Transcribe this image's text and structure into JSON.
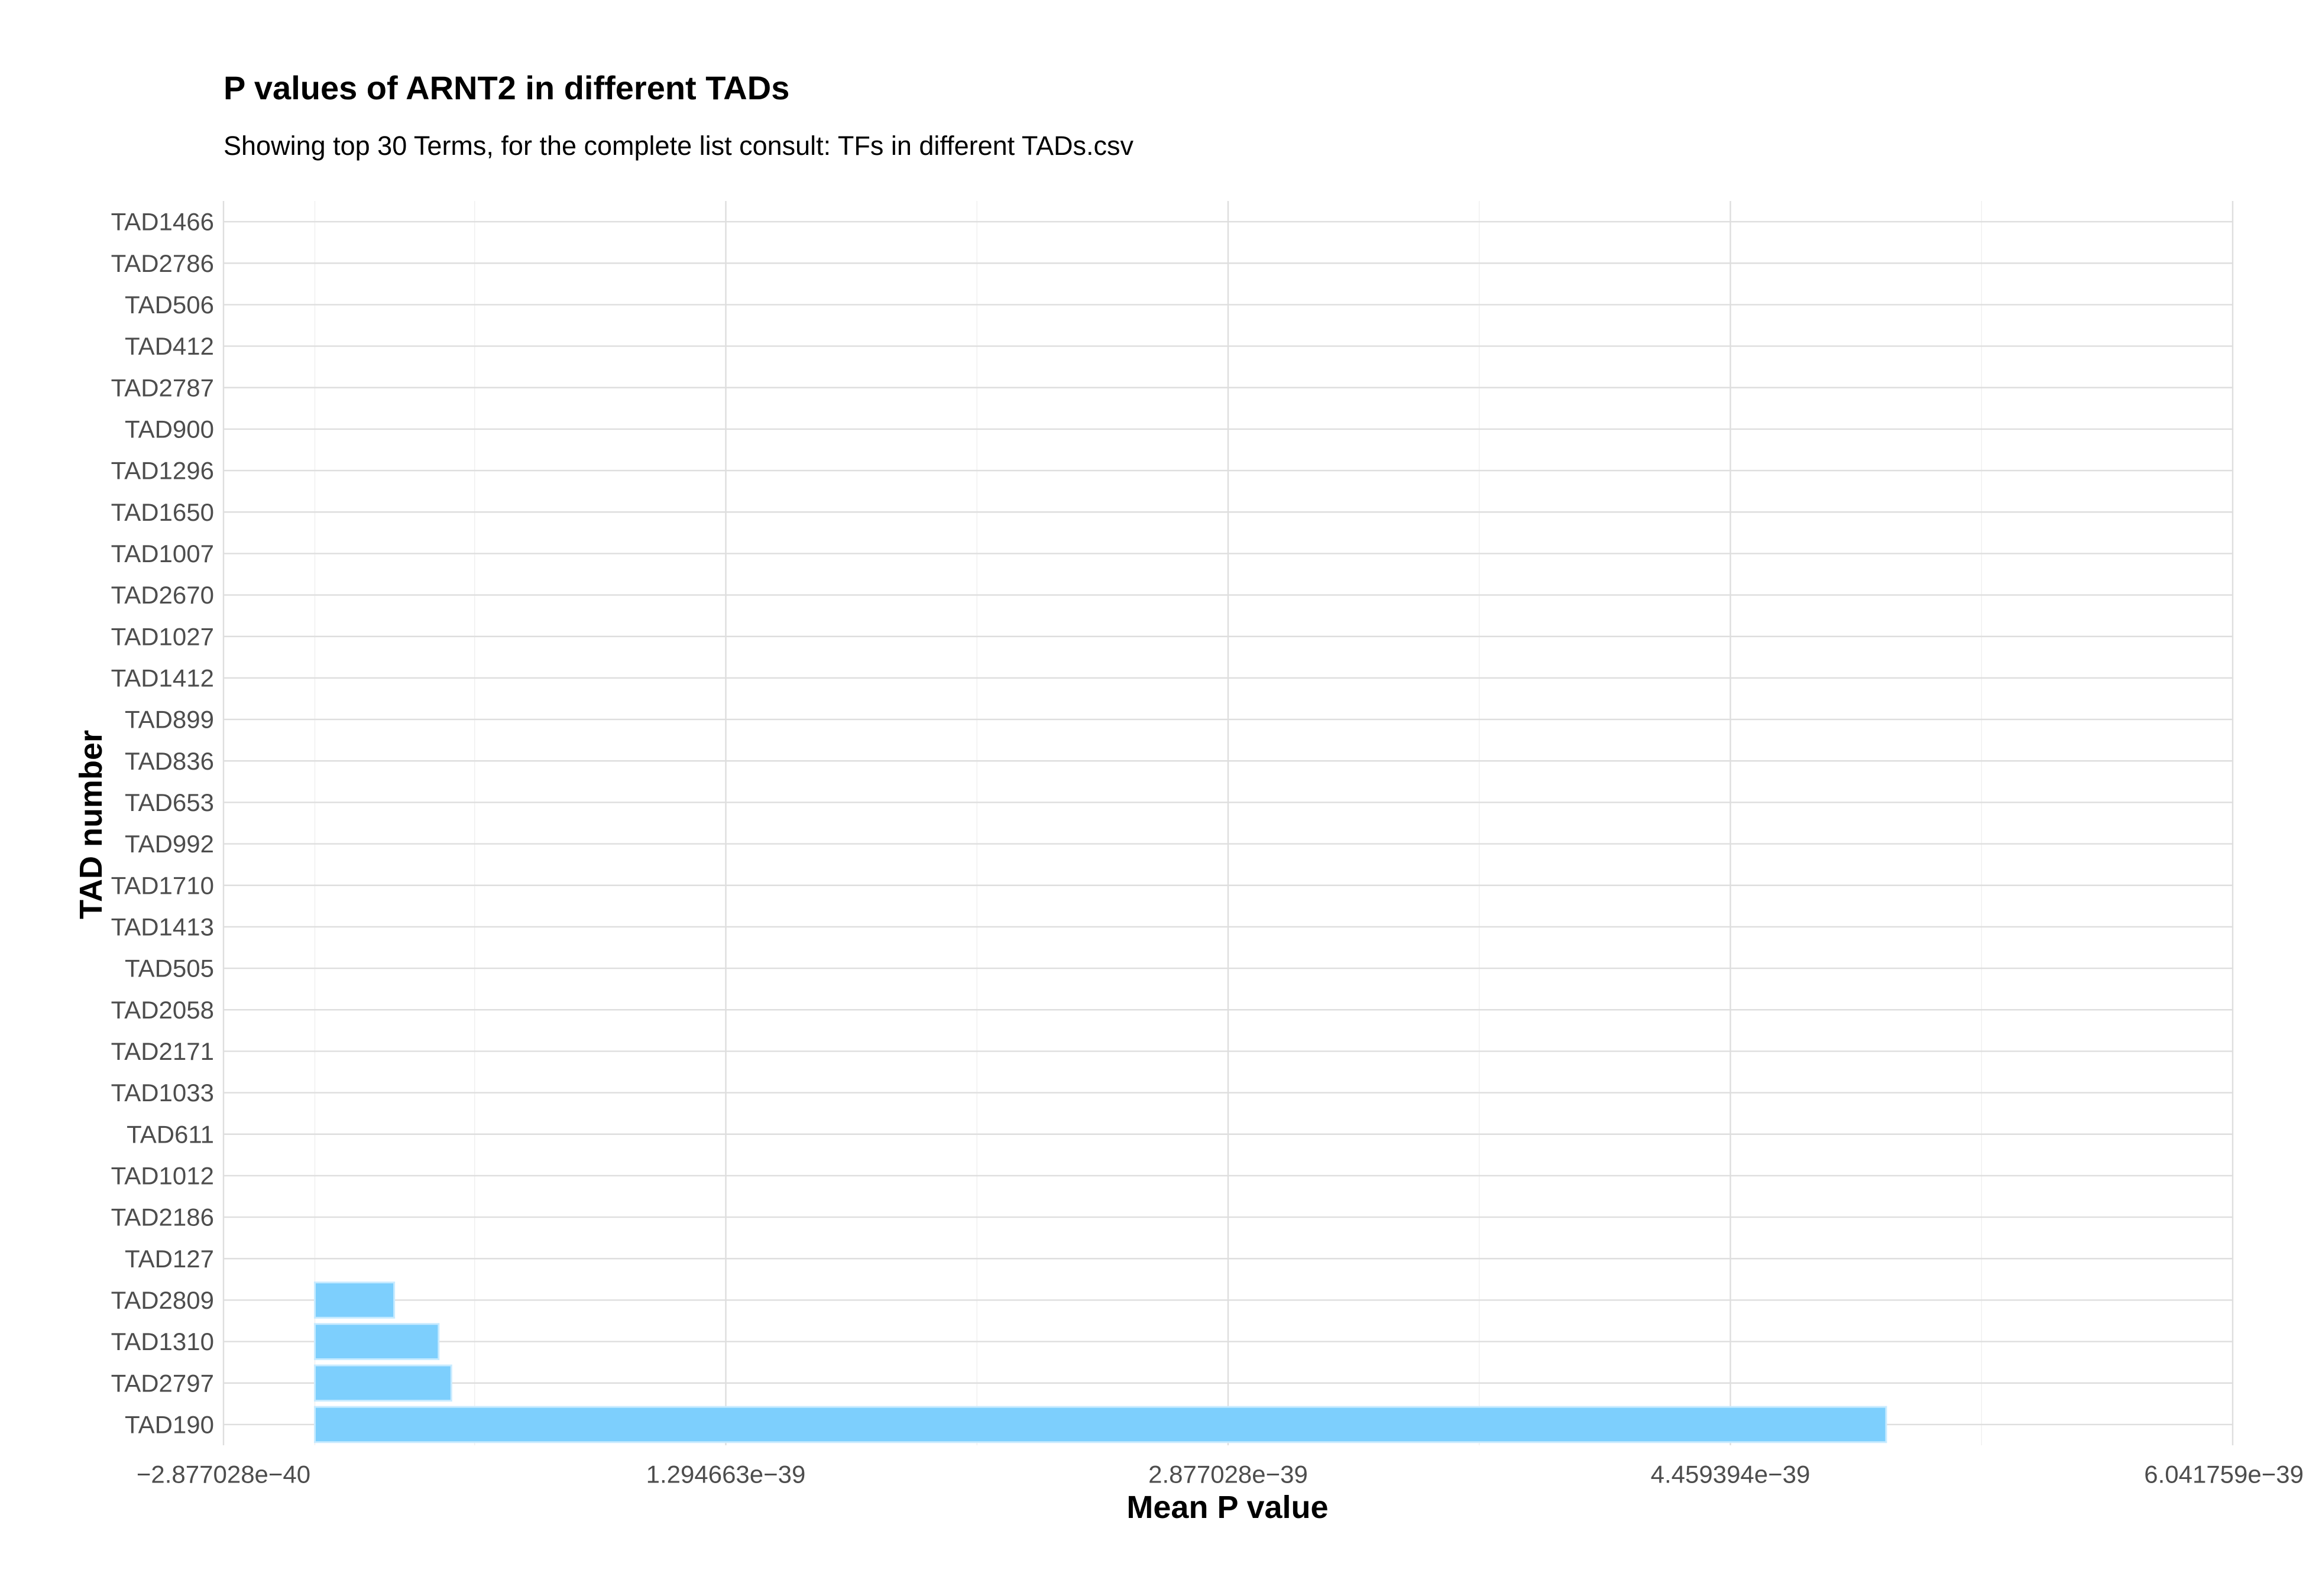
{
  "chart_data": {
    "type": "bar",
    "orientation": "horizontal",
    "title": "P values of ARNT2 in different TADs",
    "subtitle": "Showing top 30 Terms, for the complete list consult: TFs in different TADs.csv",
    "xlabel": "Mean P value",
    "ylabel": "TAD number",
    "categories": [
      "TAD1466",
      "TAD2786",
      "TAD506",
      "TAD412",
      "TAD2787",
      "TAD900",
      "TAD1296",
      "TAD1650",
      "TAD1007",
      "TAD2670",
      "TAD1027",
      "TAD1412",
      "TAD899",
      "TAD836",
      "TAD653",
      "TAD992",
      "TAD1710",
      "TAD1413",
      "TAD505",
      "TAD2058",
      "TAD2171",
      "TAD1033",
      "TAD611",
      "TAD1012",
      "TAD2186",
      "TAD127",
      "TAD2809",
      "TAD1310",
      "TAD2797",
      "TAD190"
    ],
    "values": [
      0,
      0,
      0,
      0,
      0,
      0,
      0,
      0,
      0,
      0,
      0,
      0,
      0,
      0,
      0,
      0,
      0,
      0,
      0,
      0,
      0,
      0,
      0,
      0,
      0,
      0,
      2.5e-40,
      3.9e-40,
      4.3e-40,
      4.95e-39
    ],
    "xlim": [
      -2.877028e-40,
      6.041759e-39
    ],
    "x_ticks": [
      -2.877028e-40,
      1.294663e-39,
      2.877028e-39,
      4.459394e-39,
      6.041759e-39
    ],
    "x_tick_labels": [
      "−2.877028e−40",
      "1.294663e−39",
      "2.877028e−39",
      "4.459394e−39",
      "6.041759e−39"
    ],
    "grid": true,
    "legend": "none",
    "colors": {
      "bar_fill": "#7dcffd",
      "bar_outline": "#c8ebff",
      "grid_major": "#dedede",
      "grid_minor": "#efefef",
      "tick_text": "#4d4d4d",
      "title_text": "#000000"
    }
  }
}
